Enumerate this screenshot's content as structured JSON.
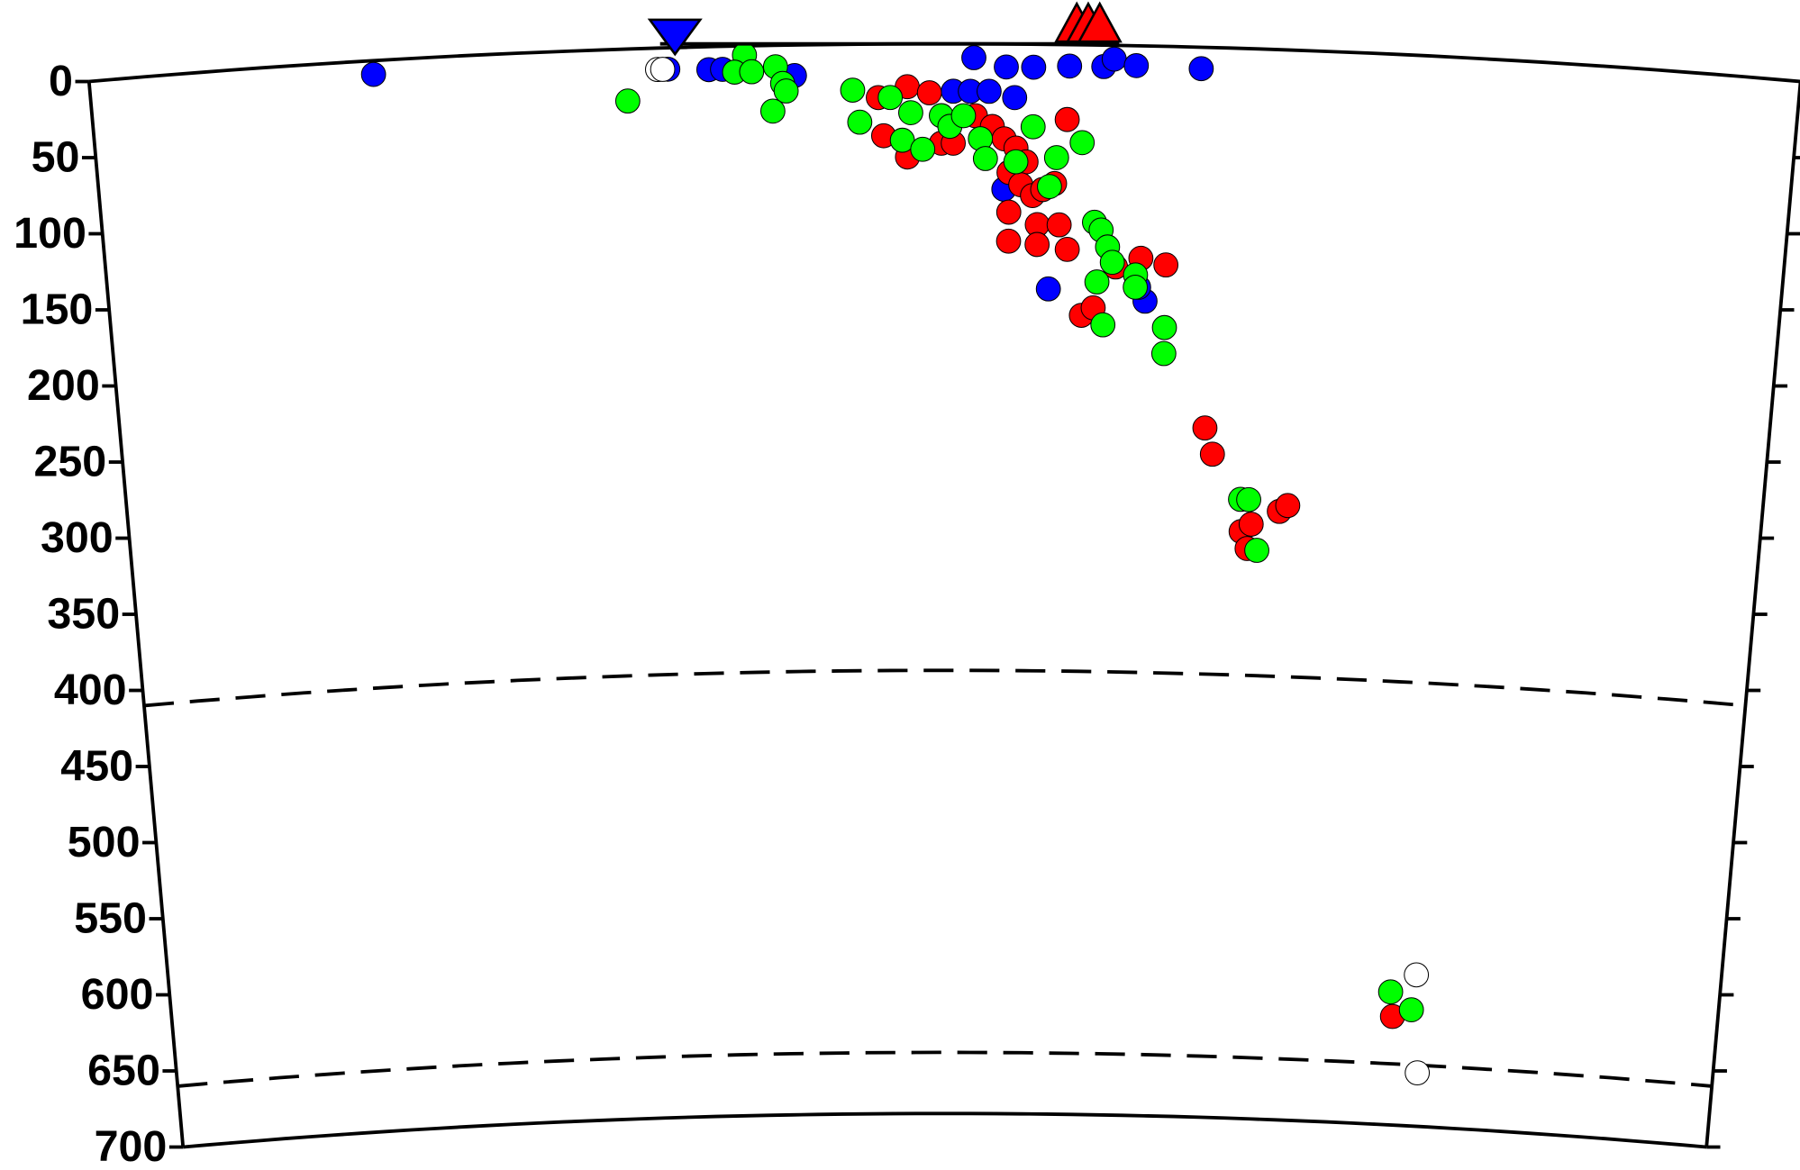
{
  "chart_data": {
    "type": "scatter",
    "xlim": [
      0,
      1000
    ],
    "ylim": [
      0,
      700
    ],
    "yticks": [
      0,
      50,
      100,
      150,
      200,
      250,
      300,
      350,
      400,
      450,
      500,
      550,
      600,
      650,
      700
    ],
    "reference_depths": [
      410,
      660
    ],
    "series": [
      {
        "color": "#0000ff",
        "x": [
          166,
          338,
          362,
          370,
          412,
          517,
          536,
          552,
          573,
          593,
          599,
          612,
          650,
          505,
          515,
          526,
          541,
          535,
          562,
          620,
          616
        ],
        "values": [
          9,
          14,
          15,
          15,
          20,
          9,
          15,
          15,
          14,
          14,
          9,
          13,
          14,
          31,
          31,
          31,
          35,
          95,
          160,
          167,
          158
        ]
      },
      {
        "color": "#ff0000",
        "x": [
          572,
          461,
          478,
          491,
          464,
          478,
          498,
          505,
          518,
          528,
          535,
          542,
          548,
          538,
          545,
          552,
          558,
          565,
          538,
          555,
          568,
          538,
          555,
          573,
          602,
          617,
          632,
          582,
          589,
          658,
          663,
          682,
          688,
          686,
          705,
          710,
          790
        ],
        "values": [
          49,
          35,
          28,
          32,
          60,
          74,
          65,
          65,
          47,
          54,
          62,
          68,
          77,
          84,
          92,
          99,
          95,
          91,
          110,
          118,
          118,
          129,
          131,
          134,
          145,
          139,
          143,
          177,
          172,
          249,
          266,
          316,
          311,
          327,
          302,
          298,
          629
        ]
      },
      {
        "color": "#00ff00",
        "x": [
          314,
          383,
          377,
          387,
          401,
          405,
          407,
          399,
          446,
          450,
          468,
          480,
          475,
          487,
          498,
          503,
          511,
          521,
          524,
          542,
          552,
          566,
          562,
          581,
          589,
          593,
          597,
          600,
          591,
          614,
          614,
          595,
          632,
          632,
          681,
          686,
          692,
          788,
          802
        ],
        "values": [
          34,
          6,
          17,
          17,
          14,
          25,
          30,
          43,
          30,
          51,
          35,
          45,
          63,
          69,
          47,
          54,
          47,
          62,
          75,
          77,
          54,
          74,
          93,
          64,
          116,
          121,
          132,
          142,
          155,
          150,
          158,
          183,
          184,
          201,
          295,
          295,
          328,
          613,
          624
        ]
      },
      {
        "color": "#ffffff",
        "x": [
          332,
          335,
          804,
          808
        ],
        "values": [
          14,
          14,
          601,
          665
        ]
      }
    ]
  }
}
